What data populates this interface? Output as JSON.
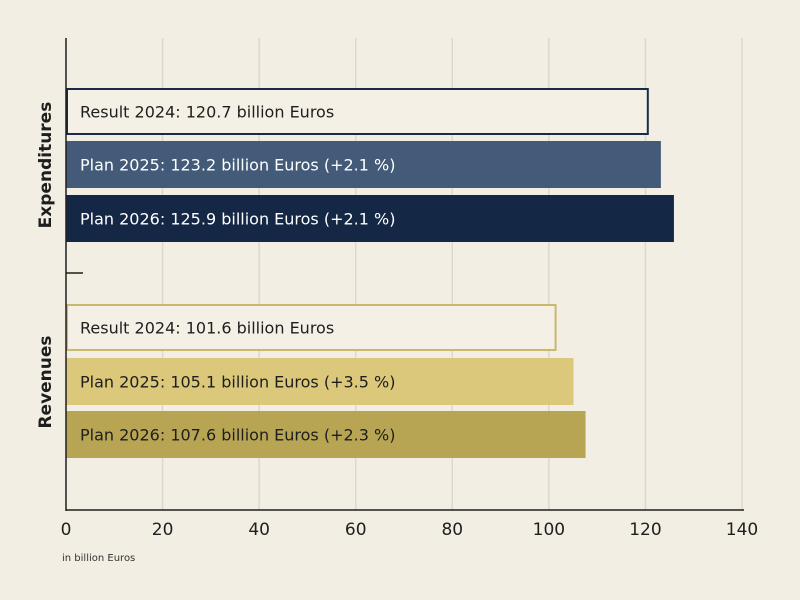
{
  "chart_data": {
    "type": "bar",
    "orientation": "horizontal",
    "xlabel": "in billion Euros",
    "xlim": [
      0,
      140
    ],
    "xticks": [
      0,
      20,
      40,
      60,
      80,
      100,
      120,
      140
    ],
    "grid": "vertical",
    "groups": [
      {
        "name": "Expenditures",
        "bars": [
          {
            "label": "Result 2024: 120.7 billion Euros",
            "value": 120.7,
            "fill": "#f4f0e6",
            "stroke": "#1b2a48",
            "text": "#1e1e1e"
          },
          {
            "label": "Plan 2025: 123.2 billion Euros (+2.1 %)",
            "value": 123.2,
            "fill": "#435a78",
            "stroke": "none",
            "text": "#ffffff"
          },
          {
            "label": "Plan 2026: 125.9 billion Euros (+2.1 %)",
            "value": 125.9,
            "fill": "#142744",
            "stroke": "none",
            "text": "#ffffff"
          }
        ]
      },
      {
        "name": "Revenues",
        "bars": [
          {
            "label": "Result 2024: 101.6 billion Euros",
            "value": 101.6,
            "fill": "#f4f0e6",
            "stroke": "#c9b96e",
            "text": "#1e1e1e"
          },
          {
            "label": "Plan 2025: 105.1 billion Euros (+3.5 %)",
            "value": 105.1,
            "fill": "#dbc87a",
            "stroke": "none",
            "text": "#1e1e1e"
          },
          {
            "label": "Plan 2026: 107.6 billion Euros (+2.3 %)",
            "value": 107.6,
            "fill": "#b8a553",
            "stroke": "none",
            "text": "#1e1e1e"
          }
        ]
      }
    ]
  }
}
